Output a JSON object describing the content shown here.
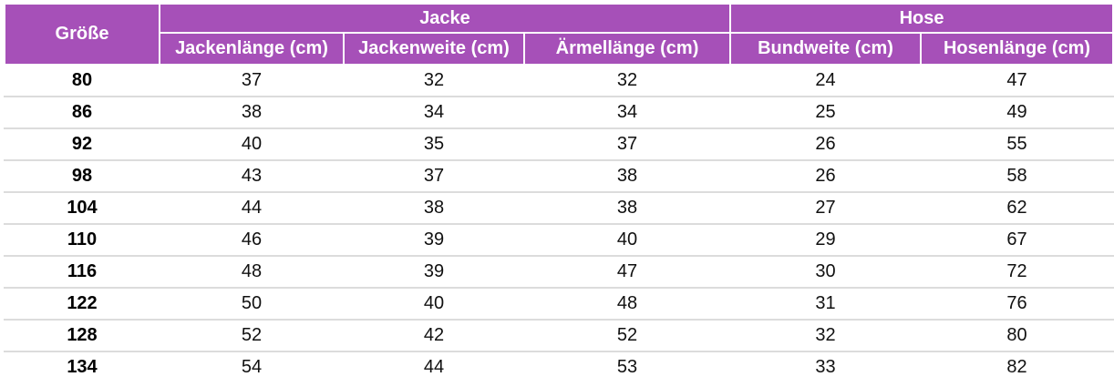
{
  "table": {
    "size_header": "Größe",
    "groups": [
      {
        "label": "Jacke",
        "span": 3
      },
      {
        "label": "Hose",
        "span": 2
      }
    ],
    "columns": [
      "Jackenlänge (cm)",
      "Jackenweite (cm)",
      "Ärmellänge (cm)",
      "Bundweite (cm)",
      "Hosenlänge (cm)"
    ],
    "rows": [
      {
        "size": "80",
        "values": [
          "37",
          "32",
          "32",
          "24",
          "47"
        ]
      },
      {
        "size": "86",
        "values": [
          "38",
          "34",
          "34",
          "25",
          "49"
        ]
      },
      {
        "size": "92",
        "values": [
          "40",
          "35",
          "37",
          "26",
          "55"
        ]
      },
      {
        "size": "98",
        "values": [
          "43",
          "37",
          "38",
          "26",
          "58"
        ]
      },
      {
        "size": "104",
        "values": [
          "44",
          "38",
          "38",
          "27",
          "62"
        ]
      },
      {
        "size": "110",
        "values": [
          "46",
          "39",
          "40",
          "29",
          "67"
        ]
      },
      {
        "size": "116",
        "values": [
          "48",
          "39",
          "47",
          "30",
          "72"
        ]
      },
      {
        "size": "122",
        "values": [
          "50",
          "40",
          "48",
          "31",
          "76"
        ]
      },
      {
        "size": "128",
        "values": [
          "52",
          "42",
          "52",
          "32",
          "80"
        ]
      },
      {
        "size": "134",
        "values": [
          "54",
          "44",
          "53",
          "33",
          "82"
        ]
      }
    ]
  },
  "colors": {
    "header_bg": "#a650b8",
    "header_text": "#ffffff",
    "row_divider": "#dcdcdc"
  }
}
